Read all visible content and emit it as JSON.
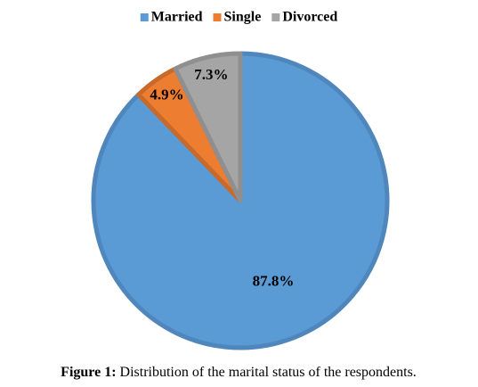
{
  "chart_data": {
    "type": "pie",
    "categories": [
      "Married",
      "Single",
      "Divorced"
    ],
    "values": [
      87.8,
      4.9,
      7.3
    ],
    "value_labels": [
      "87.8%",
      "4.9%",
      "7.3%"
    ],
    "colors": [
      "#5b9bd5",
      "#ed7d31",
      "#a5a5a5"
    ],
    "edge_colors": [
      "#4f86bb",
      "#c9692a",
      "#8f8f8f"
    ],
    "legend": "top",
    "caption_label": "Figure 1:",
    "caption": "Distribution of the marital status of the respondents."
  }
}
